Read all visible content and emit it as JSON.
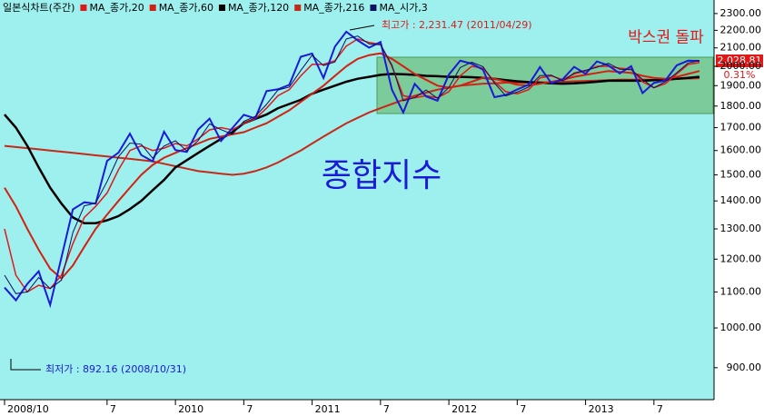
{
  "chart_data": {
    "type": "line",
    "title": "일본식차트(주간)",
    "log": true,
    "categories": [
      "2008/10",
      null,
      null,
      null,
      null,
      null,
      null,
      null,
      null,
      "7",
      null,
      null,
      null,
      null,
      null,
      "2010",
      null,
      null,
      null,
      null,
      null,
      "7",
      null,
      null,
      null,
      null,
      null,
      "2011",
      null,
      null,
      null,
      null,
      null,
      "7",
      null,
      null,
      null,
      null,
      null,
      "2012",
      null,
      null,
      null,
      null,
      null,
      "7",
      null,
      null,
      null,
      null,
      null,
      "2013",
      null,
      null,
      null,
      null,
      null,
      "7",
      null,
      null,
      null,
      null
    ],
    "values": [
      1113,
      1076,
      1124,
      1162,
      1063,
      1206,
      1369,
      1395,
      1390,
      1557,
      1591,
      1673,
      1581,
      1555,
      1682,
      1602,
      1594,
      1692,
      1741,
      1641,
      1698,
      1759,
      1742,
      1873,
      1882,
      1904,
      2051,
      2069,
      1939,
      2107,
      2192,
      2142,
      2101,
      2133,
      1880,
      1770,
      1909,
      1847,
      1826,
      1956,
      2030,
      2014,
      1982,
      1843,
      1854,
      1881,
      1905,
      1996,
      1912,
      1933,
      1997,
      1961,
      2026,
      2005,
      1963,
      2001,
      1863,
      1914,
      1926,
      2005,
      2030,
      2029
    ],
    "color": "#1a1ad8",
    "series": [
      {
        "name": "MA_종가,20",
        "color": "#e01818",
        "values": [
          1300,
          1150,
          1100,
          1120,
          1110,
          1150,
          1250,
          1340,
          1380,
          1430,
          1520,
          1600,
          1620,
          1600,
          1610,
          1630,
          1620,
          1650,
          1690,
          1700,
          1690,
          1720,
          1740,
          1790,
          1850,
          1880,
          1950,
          2010,
          2010,
          2030,
          2110,
          2150,
          2130,
          2120,
          2000,
          1850,
          1840,
          1850,
          1840,
          1870,
          1950,
          2000,
          1990,
          1920,
          1870,
          1860,
          1880,
          1940,
          1950,
          1930,
          1960,
          1975,
          2000,
          2000,
          1990,
          1985,
          1920,
          1890,
          1910,
          1960,
          2010,
          2020
        ]
      },
      {
        "name": "MA_종가,60",
        "color": "#d42010",
        "values": [
          1450,
          1380,
          1300,
          1230,
          1170,
          1140,
          1180,
          1240,
          1300,
          1350,
          1400,
          1450,
          1500,
          1540,
          1570,
          1590,
          1610,
          1630,
          1650,
          1660,
          1670,
          1680,
          1700,
          1720,
          1750,
          1780,
          1820,
          1860,
          1900,
          1950,
          2000,
          2040,
          2060,
          2070,
          2040,
          2000,
          1960,
          1930,
          1900,
          1890,
          1900,
          1920,
          1940,
          1935,
          1920,
          1905,
          1900,
          1910,
          1920,
          1930,
          1945,
          1955,
          1965,
          1975,
          1970,
          1965,
          1950,
          1940,
          1935,
          1945,
          1960,
          1975
        ]
      },
      {
        "name": "MA_종가,120",
        "color": "#000000",
        "values": [
          1760,
          1700,
          1620,
          1530,
          1450,
          1390,
          1340,
          1320,
          1320,
          1330,
          1345,
          1370,
          1400,
          1440,
          1480,
          1530,
          1560,
          1590,
          1620,
          1650,
          1680,
          1720,
          1740,
          1760,
          1790,
          1810,
          1830,
          1860,
          1880,
          1900,
          1920,
          1935,
          1945,
          1955,
          1960,
          1958,
          1955,
          1950,
          1948,
          1945,
          1945,
          1943,
          1940,
          1935,
          1928,
          1922,
          1918,
          1915,
          1912,
          1910,
          1912,
          1915,
          1920,
          1925,
          1925,
          1925,
          1925,
          1928,
          1930,
          1935,
          1940,
          1945
        ]
      },
      {
        "name": "MA_종가,216",
        "color": "#c82818",
        "values": [
          1620,
          1615,
          1610,
          1605,
          1600,
          1595,
          1590,
          1585,
          1580,
          1575,
          1570,
          1565,
          1560,
          1555,
          1545,
          1535,
          1525,
          1515,
          1510,
          1505,
          1500,
          1505,
          1515,
          1530,
          1550,
          1575,
          1600,
          1630,
          1660,
          1690,
          1720,
          1745,
          1770,
          1790,
          1810,
          1830,
          1850,
          1865,
          1880,
          1890,
          1900,
          1905,
          1910,
          1912,
          1915,
          1915,
          1915,
          1916,
          1918,
          1920,
          1922,
          1924,
          1926,
          1928,
          1930,
          1930,
          1930,
          1930,
          1932,
          1934,
          1936,
          1938
        ]
      },
      {
        "name": "MA_시가,3",
        "color": "#101060",
        "values": [
          1150,
          1095,
          1100,
          1143,
          1110,
          1135,
          1288,
          1382,
          1392,
          1474,
          1574,
          1632,
          1627,
          1568,
          1619,
          1642,
          1598,
          1643,
          1717,
          1691,
          1670,
          1729,
          1751,
          1808,
          1878,
          1893,
          1978,
          2060,
          2004,
          2023,
          2150,
          2167,
          2122,
          2117,
          2007,
          1825,
          1840,
          1878,
          1837,
          1891,
          1993,
          2022,
          1998,
          1913,
          1849,
          1868,
          1893,
          1951,
          1954,
          1923,
          1965,
          1979,
          1994,
          2016,
          1984,
          1982,
          1932,
          1889,
          1920,
          1966,
          2018,
          2030
        ]
      }
    ],
    "ylim": [
      827,
      2384
    ],
    "yticks": [
      {
        "value": 2300,
        "label": "2300.00"
      },
      {
        "value": 2200,
        "label": "2200.00"
      },
      {
        "value": 2100,
        "label": "2100.00"
      },
      {
        "value": 2000,
        "label": "2000.00"
      },
      {
        "value": 1900,
        "label": "1900.00"
      },
      {
        "value": 1800,
        "label": "1800.00"
      },
      {
        "value": 1700,
        "label": "1700.00"
      },
      {
        "value": 1600,
        "label": "1600.00"
      },
      {
        "value": 1500,
        "label": "1500.00"
      },
      {
        "value": 1400,
        "label": "1400.00"
      },
      {
        "value": 1300,
        "label": "1300.00"
      },
      {
        "value": 1200,
        "label": "1200.00"
      },
      {
        "value": 1100,
        "label": "1100.00"
      },
      {
        "value": 1000,
        "label": "1000.00"
      },
      {
        "value": 900,
        "label": "900.00"
      }
    ],
    "annotations": {
      "high": "최고가 : 2,231.47 (2011/04/29)",
      "low": "최저가 : 892.16 (2008/10/31)",
      "name": "종합지수",
      "note": "박스권 돌파",
      "last": "2,028.81",
      "change": "0.31%"
    }
  }
}
